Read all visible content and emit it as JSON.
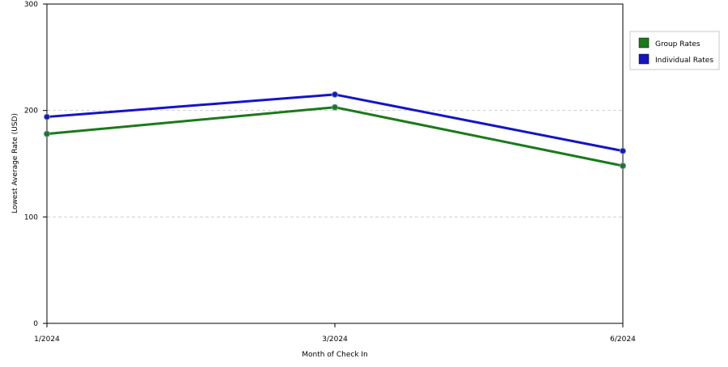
{
  "chart_data": {
    "type": "line",
    "title": "",
    "xlabel": "Month of Check In",
    "ylabel": "Lowest Average Rate (USD)",
    "categories": [
      "1/2024",
      "3/2024",
      "6/2024"
    ],
    "x_scale": "category",
    "ylim": [
      0,
      300
    ],
    "yticks": [
      0,
      100,
      200,
      300
    ],
    "grid": "horizontal dashed",
    "legend_placement": "right",
    "series": [
      {
        "name": "Group Rates",
        "color": "#1a7a1a",
        "values": [
          178,
          203,
          148
        ]
      },
      {
        "name": "Individual Rates",
        "color": "#1414c8",
        "values": [
          194,
          215,
          162
        ]
      }
    ]
  }
}
